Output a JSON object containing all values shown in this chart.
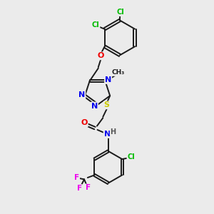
{
  "bg_color": "#ebebeb",
  "bond_color": "#1a1a1a",
  "atom_colors": {
    "N": "#0000ee",
    "O": "#ee0000",
    "S": "#cccc00",
    "Cl": "#00bb00",
    "F": "#ee00ee",
    "H": "#555555",
    "C": "#1a1a1a"
  },
  "figsize": [
    3.0,
    3.0
  ],
  "dpi": 100
}
